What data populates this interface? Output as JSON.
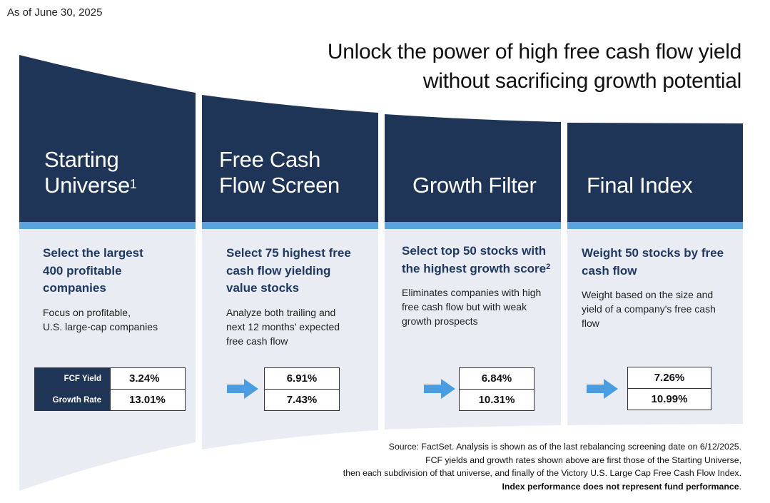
{
  "date_label": "As of June 30, 2025",
  "headline": {
    "line1": "Unlock the power of high free cash flow yield",
    "line2": "without sacrificing growth potential"
  },
  "stages": [
    {
      "title_line1": "Starting",
      "title_line2": "Universe",
      "title_sup": "1",
      "heading_line1": "Select the largest",
      "heading_line2": "400 profitable",
      "heading_line3": "companies",
      "desc_line1": "Focus on profitable,",
      "desc_line2": "U.S. large-cap companies",
      "fcf_label": "FCF Yield",
      "growth_label": "Growth Rate",
      "fcf_yield": "3.24%",
      "growth_rate": "13.01%"
    },
    {
      "title_line1": "Free Cash",
      "title_line2": "Flow Screen",
      "heading_line1": "Select 75 highest free",
      "heading_line2": "cash flow yielding",
      "heading_line3": "value stocks",
      "desc_line1": "Analyze both trailing and",
      "desc_line2": "next 12 months’ expected",
      "desc_line3": "free cash flow",
      "fcf_yield": "6.91%",
      "growth_rate": "7.43%"
    },
    {
      "title_line1": "Growth Filter",
      "heading_line1": "Select top 50 stocks with",
      "heading_line2": "the highest growth score",
      "heading_sup": "2",
      "desc_line1": "Eliminates companies with high",
      "desc_line2": "free cash flow but with weak",
      "desc_line3": "growth prospects",
      "fcf_yield": "6.84%",
      "growth_rate": "10.31%"
    },
    {
      "title_line1": "Final Index",
      "heading_line1": "Weight 50 stocks by free",
      "heading_line2": "cash flow",
      "desc_line1": "Weight based on the size and",
      "desc_line2": "yield of a company's free cash",
      "desc_line3": "flow",
      "fcf_yield": "7.26%",
      "growth_rate": "10.99%"
    }
  ],
  "source": {
    "line1": "Source: FactSet. Analysis is shown as of the last rebalancing screening date on 6/12/2025.",
    "line2": "FCF yields and growth rates shown above are first those of the Starting Universe,",
    "line3": "then each subdivision of that universe, and finally of the Victory U.S. Large Cap Free Cash Flow Index.",
    "line4_bold": "Index performance does not represent fund performance",
    "line4_end": "."
  },
  "colors": {
    "navy": "#1f3558",
    "accent_blue": "#5aa3dd",
    "panel": "#e9edf3",
    "arrow": "#4a9de0"
  }
}
